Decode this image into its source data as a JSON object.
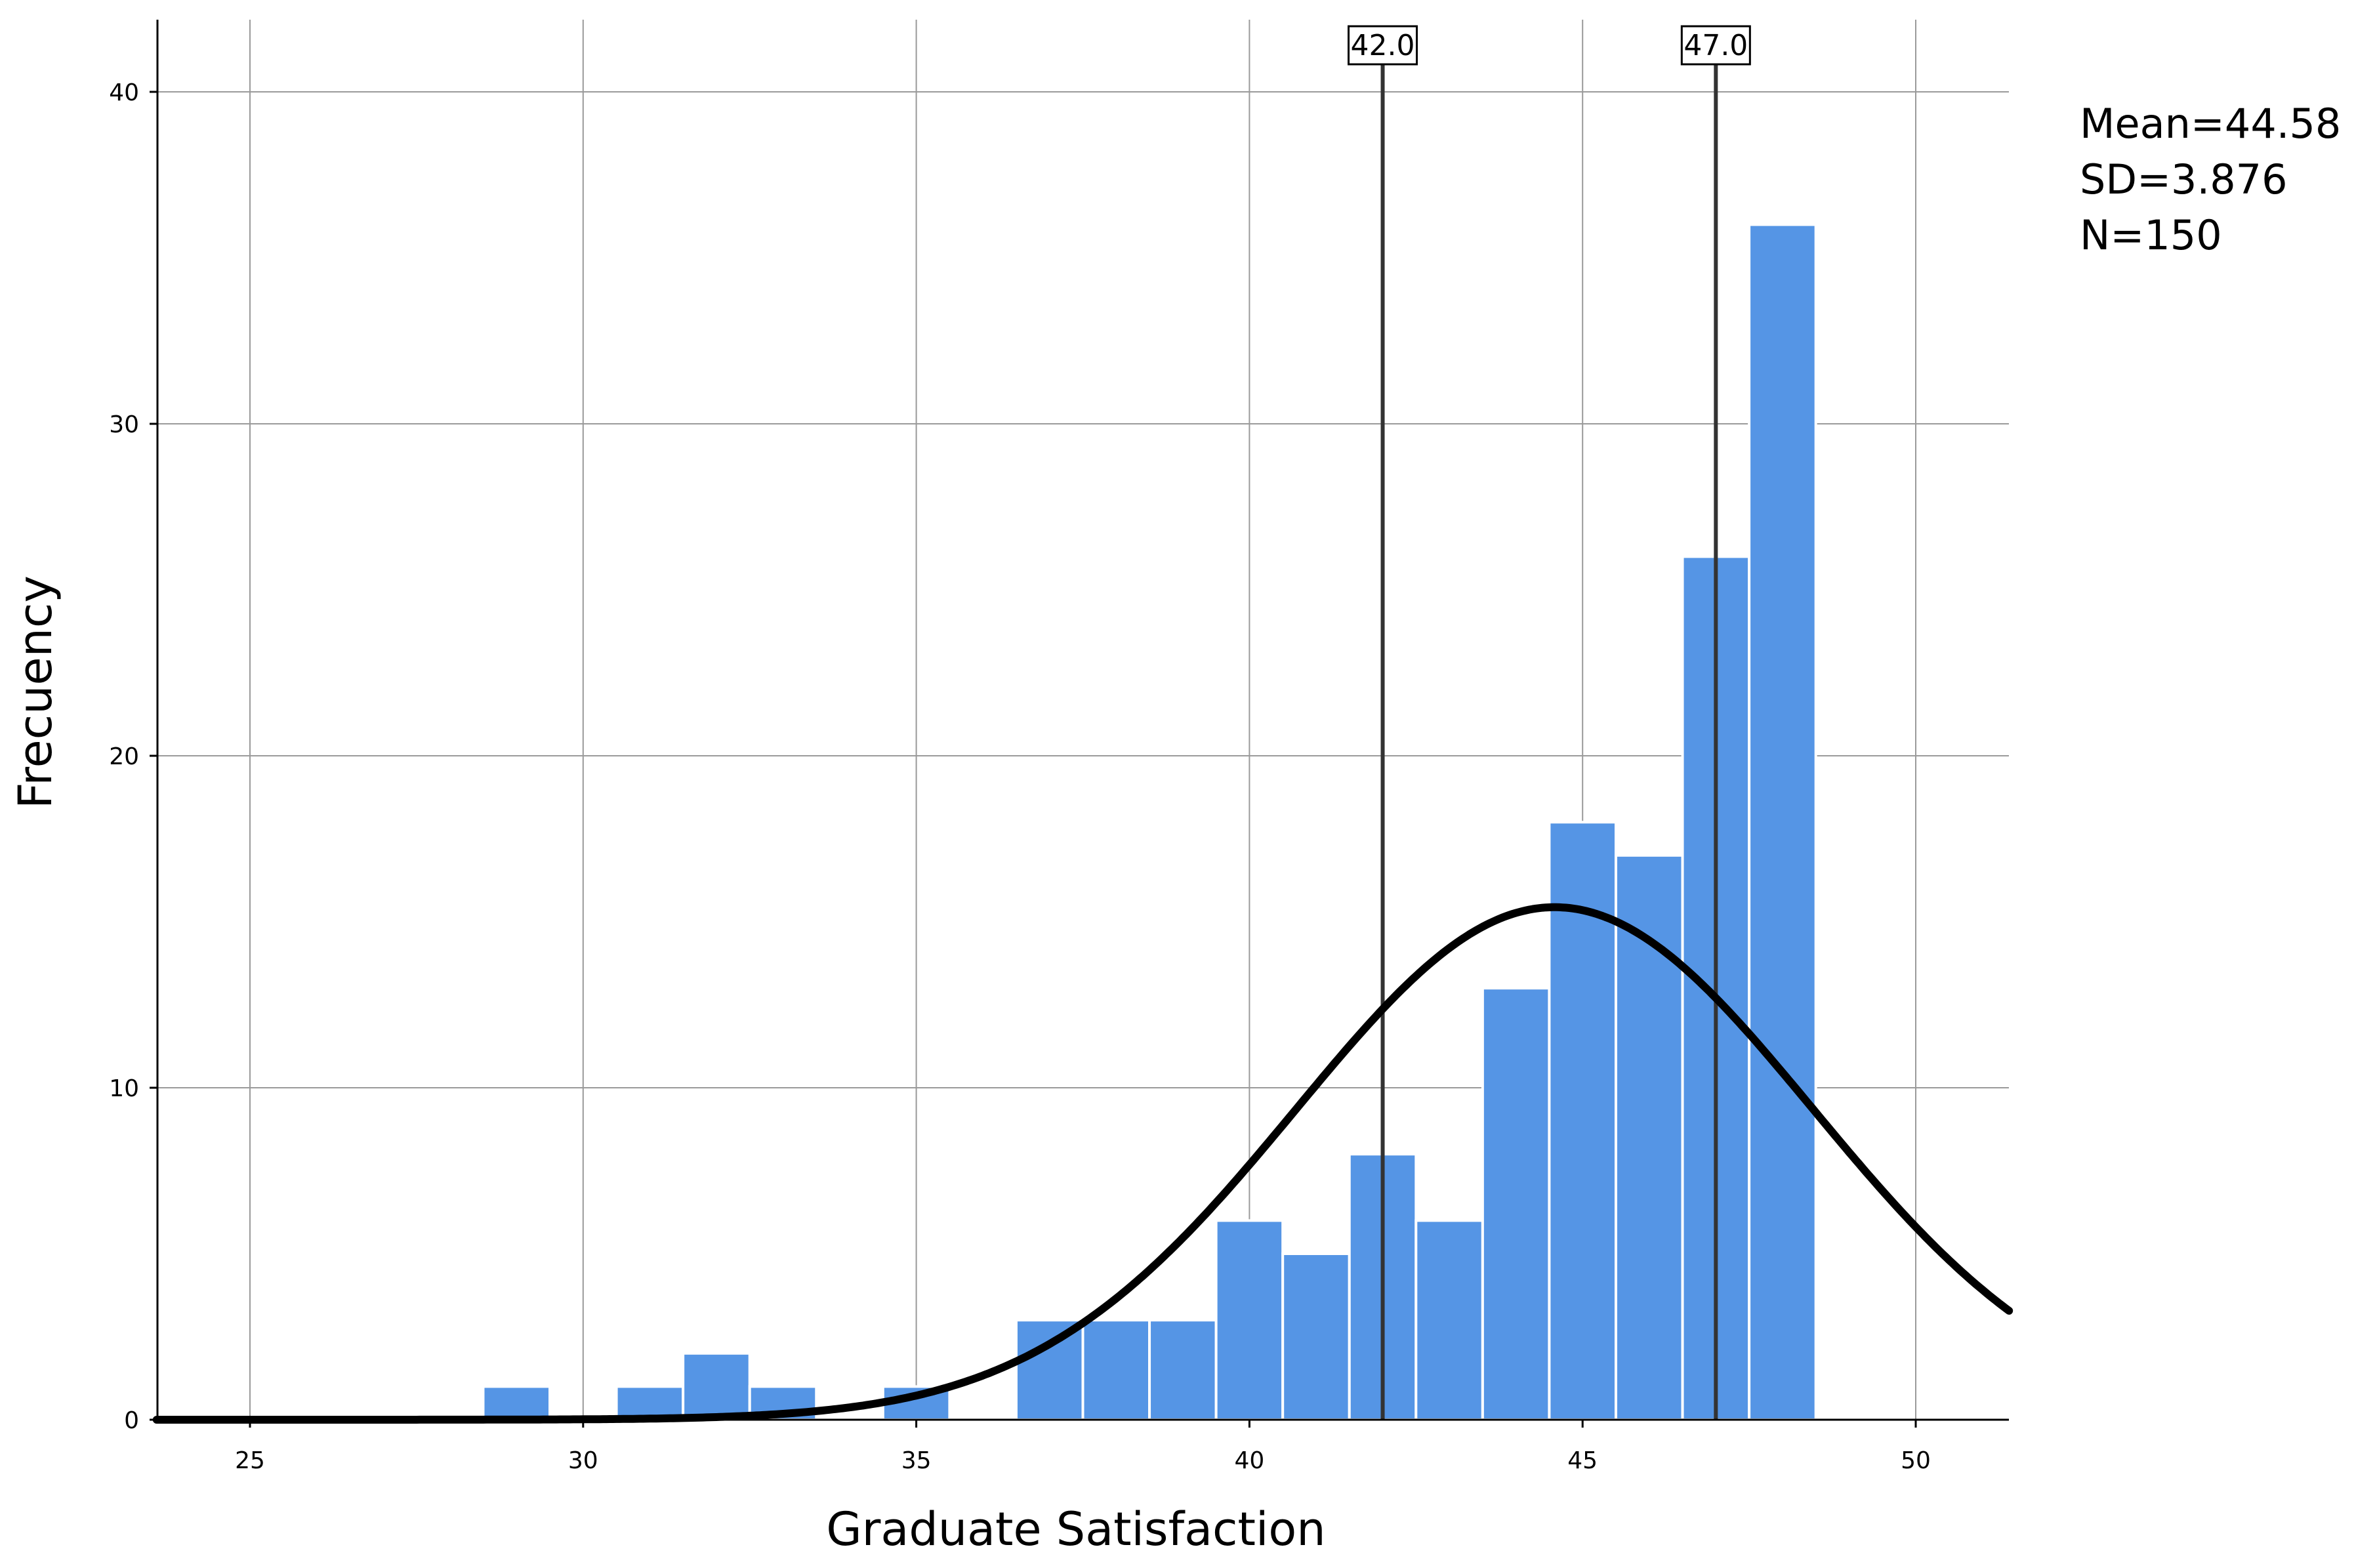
{
  "chart_data": {
    "type": "bar",
    "subtype": "histogram",
    "xlabel": "Graduate Satisfaction",
    "ylabel": "Frecuency",
    "xlim": [
      23.6,
      51.4
    ],
    "ylim": [
      0,
      42
    ],
    "x_ticks": [
      25,
      30,
      35,
      40,
      45,
      50
    ],
    "y_ticks": [
      0,
      10,
      20,
      30,
      40
    ],
    "grid": true,
    "bar_color": "#5595e5",
    "bin_width": 1,
    "bins": [
      {
        "x": 29,
        "count": 1
      },
      {
        "x": 31,
        "count": 1
      },
      {
        "x": 32,
        "count": 2
      },
      {
        "x": 33,
        "count": 1
      },
      {
        "x": 35,
        "count": 1
      },
      {
        "x": 37,
        "count": 3
      },
      {
        "x": 38,
        "count": 3
      },
      {
        "x": 39,
        "count": 3
      },
      {
        "x": 40,
        "count": 6
      },
      {
        "x": 41,
        "count": 5
      },
      {
        "x": 42,
        "count": 8
      },
      {
        "x": 43,
        "count": 6
      },
      {
        "x": 44,
        "count": 13
      },
      {
        "x": 45,
        "count": 18
      },
      {
        "x": 46,
        "count": 17
      },
      {
        "x": 47,
        "count": 26
      },
      {
        "x": 48,
        "count": 36
      }
    ],
    "normal_curve": {
      "mean": 44.58,
      "sd": 3.876,
      "n": 150
    },
    "reference_lines": [
      {
        "x": 42.0,
        "label": "42.0"
      },
      {
        "x": 47.0,
        "label": "47.0"
      }
    ],
    "stats_box": [
      "Mean=44.58",
      "SD=3.876",
      "N=150"
    ],
    "legend_position": "top-right"
  }
}
